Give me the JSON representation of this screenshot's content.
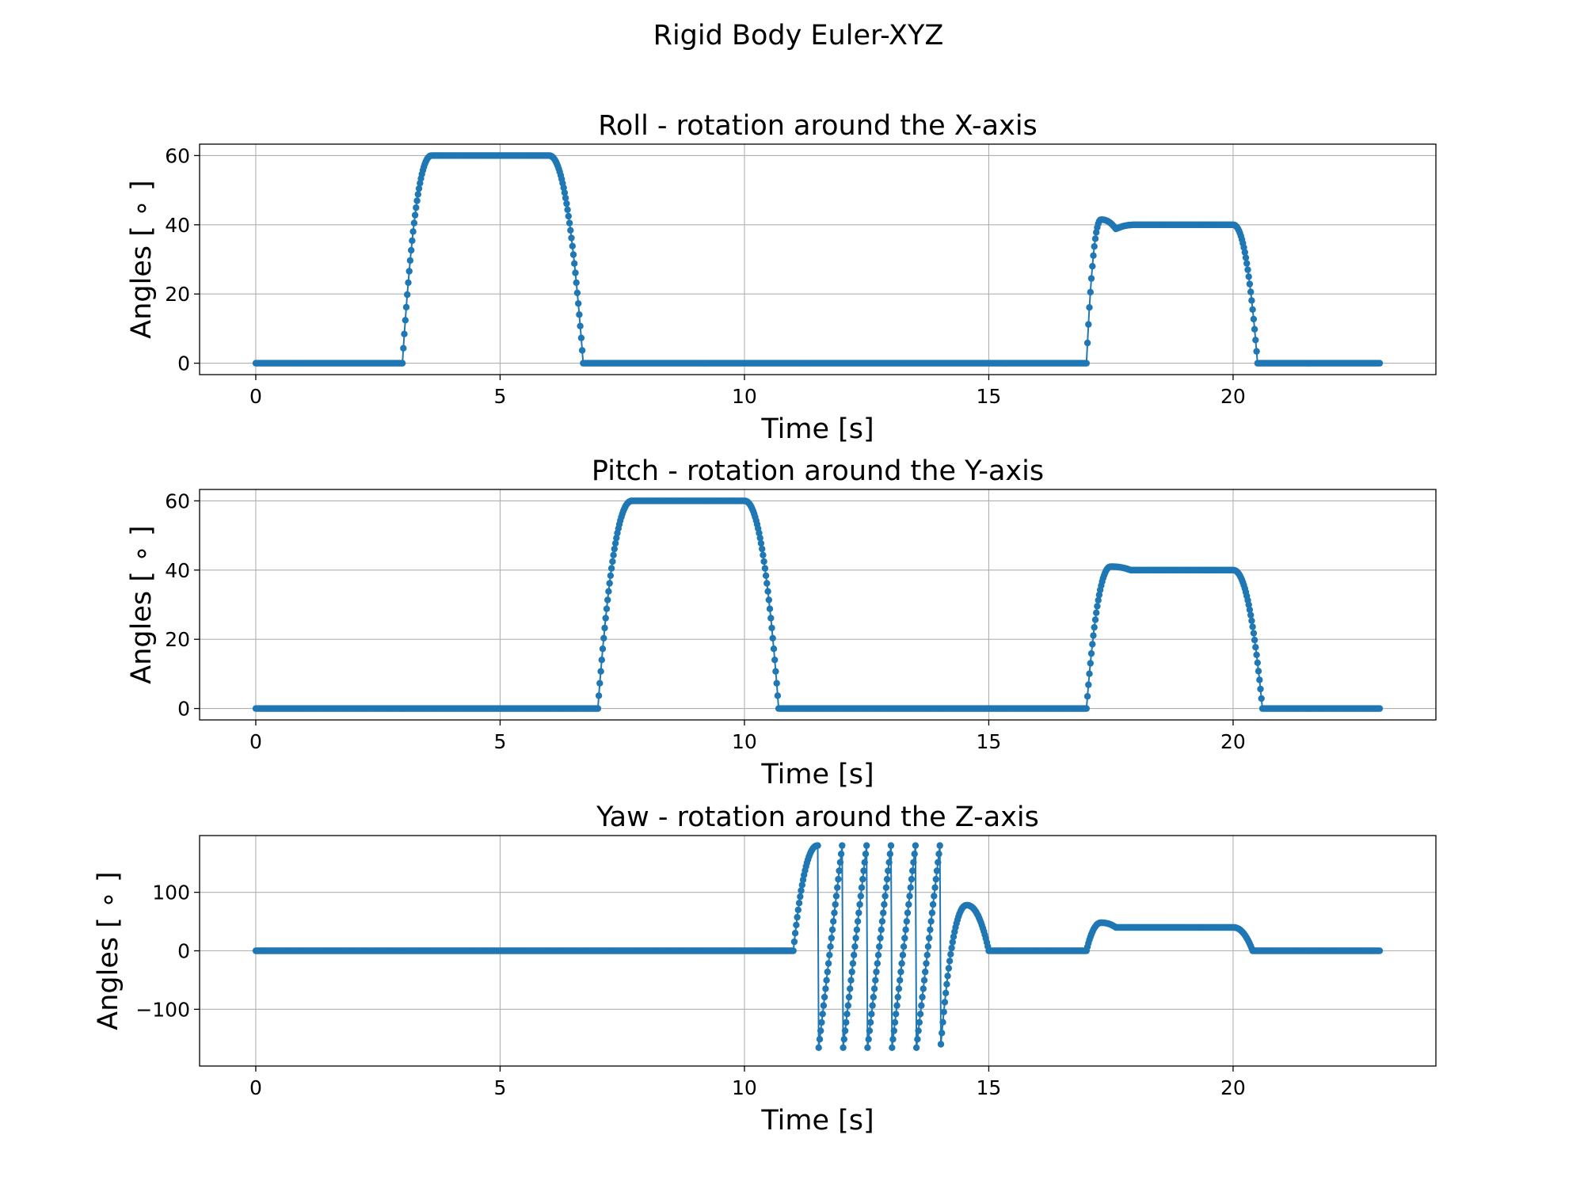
{
  "figure": {
    "title": "Rigid Body Euler-XYZ"
  },
  "chart_data": [
    {
      "type": "scatter",
      "title": "Roll - rotation around the X-axis",
      "xlabel": "Time [s]",
      "ylabel": "Angles [ ∘ ]",
      "xlim": [
        -1.15,
        24.15
      ],
      "ylim": [
        -3.3,
        63.3
      ],
      "xticks": [
        0,
        5,
        10,
        15,
        20
      ],
      "yticks": [
        0,
        20,
        40,
        60
      ],
      "ytick_labels": [
        "0",
        "20",
        "40",
        "60"
      ],
      "grid": true,
      "color": "#1f77b4",
      "x_range": [
        0,
        23
      ],
      "x_step": 0.02,
      "segments": [
        {
          "start": 0,
          "end": 3.0,
          "value": 0
        },
        {
          "start": 3.0,
          "end": 3.6,
          "from": 0,
          "to": 60,
          "shape": "rise"
        },
        {
          "start": 3.6,
          "end": 6.0,
          "value": 60
        },
        {
          "start": 6.0,
          "end": 6.7,
          "from": 60,
          "to": 0,
          "shape": "fall"
        },
        {
          "start": 6.7,
          "end": 17.0,
          "value": 0
        },
        {
          "start": 17.0,
          "end": 17.3,
          "from": 0,
          "to": 41.5,
          "shape": "rise"
        },
        {
          "start": 17.3,
          "end": 17.6,
          "from": 41.5,
          "to": 38.8,
          "shape": "fall"
        },
        {
          "start": 17.6,
          "end": 18.0,
          "from": 38.8,
          "to": 40,
          "shape": "rise"
        },
        {
          "start": 18.0,
          "end": 20.0,
          "value": 40
        },
        {
          "start": 20.0,
          "end": 20.5,
          "from": 40,
          "to": 0,
          "shape": "fall"
        },
        {
          "start": 20.5,
          "end": 23.0,
          "value": 0
        }
      ]
    },
    {
      "type": "scatter",
      "title": "Pitch - rotation around the Y-axis",
      "xlabel": "Time [s]",
      "ylabel": "Angles [ ∘ ]",
      "xlim": [
        -1.15,
        24.15
      ],
      "ylim": [
        -3.3,
        63.3
      ],
      "xticks": [
        0,
        5,
        10,
        15,
        20
      ],
      "yticks": [
        0,
        20,
        40,
        60
      ],
      "ytick_labels": [
        "0",
        "20",
        "40",
        "60"
      ],
      "grid": true,
      "color": "#1f77b4",
      "x_range": [
        0,
        23
      ],
      "x_step": 0.02,
      "segments": [
        {
          "start": 0,
          "end": 7.0,
          "value": 0
        },
        {
          "start": 7.0,
          "end": 7.7,
          "from": 0,
          "to": 60,
          "shape": "rise"
        },
        {
          "start": 7.7,
          "end": 10.0,
          "value": 60
        },
        {
          "start": 10.0,
          "end": 10.7,
          "from": 60,
          "to": 0,
          "shape": "fall"
        },
        {
          "start": 10.7,
          "end": 17.0,
          "value": 0
        },
        {
          "start": 17.0,
          "end": 17.5,
          "from": 0,
          "to": 41,
          "shape": "rise"
        },
        {
          "start": 17.5,
          "end": 17.9,
          "from": 41,
          "to": 40,
          "shape": "fall"
        },
        {
          "start": 17.9,
          "end": 20.0,
          "value": 40
        },
        {
          "start": 20.0,
          "end": 20.6,
          "from": 40,
          "to": 0,
          "shape": "fall"
        },
        {
          "start": 20.6,
          "end": 23.0,
          "value": 0
        }
      ]
    },
    {
      "type": "scatter",
      "title": "Yaw - rotation around the Z-axis",
      "xlabel": "Time [s]",
      "ylabel": "Angles [ ∘ ]",
      "xlim": [
        -1.15,
        24.15
      ],
      "ylim": [
        -197,
        197
      ],
      "xticks": [
        0,
        5,
        10,
        15,
        20
      ],
      "yticks": [
        -100,
        0,
        100
      ],
      "ytick_labels": [
        "−100",
        "0",
        "100"
      ],
      "grid": true,
      "color": "#1f77b4",
      "x_range": [
        0,
        23
      ],
      "x_step": 0.02,
      "segments": [
        {
          "start": 0,
          "end": 11.0,
          "value": 0
        },
        {
          "start": 11.0,
          "end": 11.5,
          "from": 0,
          "to": 180,
          "shape": "rise"
        },
        {
          "start": 11.5,
          "end": 12.0,
          "from": -180,
          "to": 180,
          "shape": "linear"
        },
        {
          "start": 12.0,
          "end": 12.5,
          "from": -180,
          "to": 180,
          "shape": "linear"
        },
        {
          "start": 12.5,
          "end": 13.0,
          "from": -180,
          "to": 180,
          "shape": "linear"
        },
        {
          "start": 13.0,
          "end": 13.5,
          "from": -180,
          "to": 180,
          "shape": "linear"
        },
        {
          "start": 13.5,
          "end": 14.0,
          "from": -180,
          "to": 180,
          "shape": "linear"
        },
        {
          "start": 14.0,
          "end": 14.55,
          "from": -180,
          "to": 78,
          "shape": "rise"
        },
        {
          "start": 14.55,
          "end": 15.0,
          "from": 78,
          "to": 0,
          "shape": "fall"
        },
        {
          "start": 15.0,
          "end": 17.0,
          "value": 0
        },
        {
          "start": 17.0,
          "end": 17.3,
          "from": 0,
          "to": 48,
          "shape": "rise"
        },
        {
          "start": 17.3,
          "end": 17.6,
          "from": 48,
          "to": 40,
          "shape": "fall"
        },
        {
          "start": 17.6,
          "end": 20.0,
          "value": 40
        },
        {
          "start": 20.0,
          "end": 20.4,
          "from": 40,
          "to": 0,
          "shape": "fall"
        },
        {
          "start": 20.4,
          "end": 23.0,
          "value": 0
        }
      ]
    }
  ]
}
